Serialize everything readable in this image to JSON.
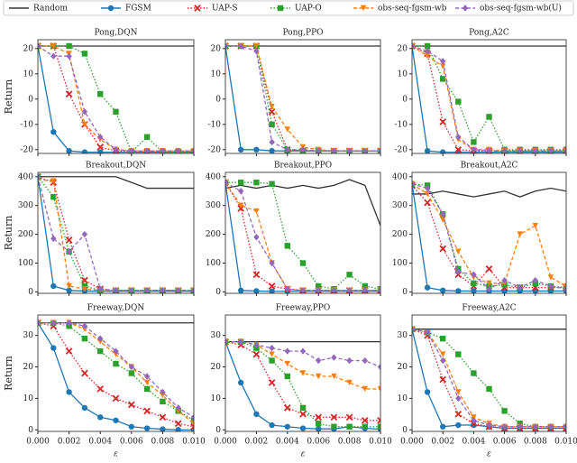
{
  "legend": [
    {
      "name": "Random",
      "color": "#333333",
      "dash": "solid"
    },
    {
      "name": "FGSM",
      "color": "#1f77b4",
      "dash": "solid",
      "marker": "circle"
    },
    {
      "name": "UAP-S",
      "color": "#d62728",
      "dash": "dotted",
      "marker": "cross"
    },
    {
      "name": "UAP-O",
      "color": "#2ca02c",
      "dash": "dotted",
      "marker": "square"
    },
    {
      "name": "obs-seq-fgsm-wb",
      "color": "#ff7f0e",
      "dash": "dashed",
      "marker": "triangle-down"
    },
    {
      "name": "obs-seq-fgsm-wb(U)",
      "color": "#9467bd",
      "dash": "dashed",
      "marker": "diamond"
    }
  ],
  "x_axis": {
    "label": "ε",
    "x": [
      0,
      0.001,
      0.002,
      0.003,
      0.004,
      0.005,
      0.006,
      0.007,
      0.008,
      0.009,
      0.01
    ],
    "xlim": [
      0,
      0.01
    ],
    "xticks": [
      {
        "value": 0,
        "label": "0.000"
      },
      {
        "value": 0.002,
        "label": "0.002"
      },
      {
        "value": 0.004,
        "label": "0.004"
      },
      {
        "value": 0.006,
        "label": "0.006"
      },
      {
        "value": 0.008,
        "label": "0.008"
      },
      {
        "value": 0.01,
        "label": "0.010"
      }
    ]
  },
  "y_axis_label": "Return",
  "chart_data": [
    {
      "type": "line",
      "title": "Pong,DQN",
      "ylim": [
        -21.5,
        23.5
      ],
      "yticks": [
        -20,
        -10,
        0,
        10,
        20
      ],
      "series": [
        {
          "values": [
            21,
            21,
            21,
            21,
            21,
            21,
            21,
            21,
            21,
            21,
            21
          ]
        },
        {
          "values": [
            21,
            -13,
            -20.5,
            -21,
            -21,
            -21,
            -21,
            -21,
            -21,
            -21,
            -21
          ]
        },
        {
          "values": [
            21,
            21,
            2,
            -10,
            -19,
            -20.5,
            -21,
            -21,
            -21,
            -21,
            -21
          ]
        },
        {
          "values": [
            21,
            21,
            21,
            18,
            2,
            -5,
            -21,
            -15,
            -21,
            -21,
            -21
          ]
        },
        {
          "values": [
            21,
            21,
            18,
            -10,
            -16,
            -20,
            -20.5,
            -20.5,
            -20.5,
            -20.5,
            -20.5
          ]
        },
        {
          "values": [
            21,
            17,
            17,
            -5,
            -15,
            -20,
            -20.5,
            -20.5,
            -20.5,
            -20.5,
            -20.5
          ]
        }
      ]
    },
    {
      "type": "line",
      "title": "Pong,PPO",
      "ylim": [
        -21.5,
        23.5
      ],
      "yticks": [
        -20,
        -10,
        0,
        10,
        20
      ],
      "series": [
        {
          "values": [
            21,
            21,
            21,
            21,
            21,
            21,
            21,
            21,
            21,
            21,
            21
          ]
        },
        {
          "values": [
            21,
            -20,
            -20,
            -20.5,
            -20.5,
            -20.5,
            -20.5,
            -20.5,
            -20.5,
            -20.5,
            -20.5
          ]
        },
        {
          "values": [
            21,
            21,
            21,
            -5,
            -20,
            -20.5,
            -20.5,
            -20.5,
            -20.5,
            -20.5,
            -20.5
          ]
        },
        {
          "values": [
            21,
            21,
            21,
            -10,
            -20,
            -20.5,
            -20.5,
            -20.5,
            -20.5,
            -20.5,
            -20.5
          ]
        },
        {
          "values": [
            21,
            21,
            21,
            -3,
            -12,
            -19,
            -20,
            -20.5,
            -20.5,
            -20.5,
            -20.5
          ]
        },
        {
          "values": [
            21,
            21,
            19,
            -17,
            -20,
            -20,
            -20.5,
            -20.5,
            -20.5,
            -20.5,
            -20.5
          ]
        }
      ]
    },
    {
      "type": "line",
      "title": "Pong,A2C",
      "ylim": [
        -21.5,
        23.5
      ],
      "yticks": [
        -20,
        -10,
        0,
        10,
        20
      ],
      "series": [
        {
          "values": [
            21,
            21,
            21,
            21,
            21,
            21,
            21,
            21,
            21,
            21,
            21
          ]
        },
        {
          "values": [
            21,
            -20.5,
            -21,
            -21,
            -21,
            -21,
            -21,
            -21,
            -21,
            -21,
            -21
          ]
        },
        {
          "values": [
            21,
            18,
            -9,
            -20,
            -20.5,
            -20.5,
            -20.5,
            -20.5,
            -20.5,
            -20.5,
            -20.5
          ]
        },
        {
          "values": [
            21,
            21,
            8,
            -1,
            -17,
            -7,
            -20,
            -20,
            -20,
            -20,
            -20
          ]
        },
        {
          "values": [
            21,
            17,
            13,
            -16,
            -20,
            -20,
            -20.5,
            -20.5,
            -20.5,
            -20.5,
            -20.5
          ]
        },
        {
          "values": [
            21,
            19,
            15,
            -15,
            -20,
            -20.5,
            -20.5,
            -20.5,
            -20.5,
            -20.5,
            -20.5
          ]
        }
      ]
    },
    {
      "type": "line",
      "title": "Breakout,DQN",
      "ylim": [
        -5,
        415
      ],
      "yticks": [
        0,
        100,
        200,
        300,
        400
      ],
      "series": [
        {
          "values": [
            400,
            400,
            400,
            400,
            400,
            400,
            380,
            360,
            360,
            360,
            360
          ]
        },
        {
          "values": [
            400,
            20,
            5,
            3,
            2,
            2,
            2,
            2,
            2,
            2,
            2
          ]
        },
        {
          "values": [
            400,
            380,
            180,
            40,
            10,
            5,
            5,
            5,
            5,
            5,
            5
          ]
        },
        {
          "values": [
            400,
            330,
            140,
            20,
            5,
            5,
            5,
            5,
            5,
            5,
            5
          ]
        },
        {
          "values": [
            390,
            385,
            20,
            10,
            5,
            5,
            5,
            5,
            5,
            5,
            5
          ]
        },
        {
          "values": [
            400,
            185,
            140,
            200,
            10,
            5,
            5,
            5,
            5,
            5,
            5
          ]
        }
      ]
    },
    {
      "type": "line",
      "title": "Breakout,PPO",
      "ylim": [
        -5,
        415
      ],
      "yticks": [
        0,
        100,
        200,
        300,
        400
      ],
      "series": [
        {
          "values": [
            360,
            370,
            360,
            370,
            360,
            370,
            360,
            370,
            390,
            370,
            230
          ]
        },
        {
          "values": [
            380,
            5,
            3,
            2,
            2,
            2,
            2,
            2,
            2,
            2,
            2
          ]
        },
        {
          "values": [
            380,
            290,
            60,
            20,
            10,
            5,
            5,
            5,
            5,
            5,
            5
          ]
        },
        {
          "values": [
            380,
            380,
            380,
            375,
            160,
            100,
            20,
            10,
            60,
            20,
            10
          ]
        },
        {
          "values": [
            380,
            300,
            280,
            100,
            10,
            5,
            5,
            5,
            5,
            5,
            5
          ]
        },
        {
          "values": [
            380,
            350,
            190,
            100,
            10,
            5,
            5,
            5,
            5,
            5,
            5
          ]
        }
      ]
    },
    {
      "type": "line",
      "title": "Breakout,A2C",
      "ylim": [
        -5,
        415
      ],
      "yticks": [
        0,
        100,
        200,
        300,
        400
      ],
      "series": [
        {
          "values": [
            340,
            340,
            350,
            340,
            330,
            340,
            350,
            330,
            350,
            360,
            350
          ]
        },
        {
          "values": [
            375,
            15,
            5,
            3,
            3,
            3,
            3,
            3,
            3,
            3,
            3
          ]
        },
        {
          "values": [
            370,
            310,
            150,
            60,
            20,
            80,
            15,
            15,
            15,
            15,
            15
          ]
        },
        {
          "values": [
            375,
            370,
            270,
            80,
            30,
            20,
            25,
            15,
            30,
            20,
            15
          ]
        },
        {
          "values": [
            375,
            340,
            250,
            140,
            50,
            30,
            30,
            200,
            230,
            50,
            20
          ]
        },
        {
          "values": [
            375,
            360,
            270,
            70,
            60,
            10,
            40,
            15,
            40,
            20,
            10
          ]
        }
      ]
    },
    {
      "type": "line",
      "title": "Freeway,DQN",
      "ylim": [
        -0.5,
        36.5
      ],
      "yticks": [
        0,
        10,
        20,
        30
      ],
      "series": [
        {
          "values": [
            34,
            34,
            34,
            34,
            34,
            34,
            34,
            34,
            34,
            34,
            34
          ]
        },
        {
          "values": [
            34,
            26,
            12,
            7,
            4,
            3,
            1,
            0.5,
            0.2,
            0,
            0
          ]
        },
        {
          "values": [
            34,
            33,
            25,
            18,
            13,
            10,
            8,
            6,
            4,
            2,
            1
          ]
        },
        {
          "values": [
            34,
            34,
            33,
            29,
            25,
            21,
            18,
            13,
            9,
            6,
            3
          ]
        },
        {
          "values": [
            34,
            34,
            34,
            32,
            28,
            24,
            20,
            15,
            11,
            6,
            2
          ]
        },
        {
          "values": [
            34,
            34,
            34,
            33,
            29,
            25,
            20,
            17,
            12,
            7,
            4
          ]
        }
      ]
    },
    {
      "type": "line",
      "title": "Freeway,PPO",
      "ylim": [
        -0.5,
        36.5
      ],
      "yticks": [
        0,
        10,
        20,
        30
      ],
      "series": [
        {
          "values": [
            28,
            28,
            28,
            28,
            28,
            28,
            28,
            28,
            28,
            28,
            28
          ]
        },
        {
          "values": [
            28,
            15,
            5,
            1.5,
            1,
            0.5,
            0.3,
            0.3,
            1,
            0.5,
            0.2
          ]
        },
        {
          "values": [
            28,
            27,
            24,
            15,
            7,
            5,
            4,
            4,
            4,
            3,
            3
          ]
        },
        {
          "values": [
            28,
            28,
            26,
            22,
            17,
            7,
            2,
            1,
            1,
            1,
            1
          ]
        },
        {
          "values": [
            28,
            28,
            27,
            24,
            21,
            18,
            17,
            17,
            15,
            13,
            13
          ]
        },
        {
          "values": [
            28,
            28,
            27,
            26,
            25,
            25,
            22,
            23,
            22,
            22,
            20
          ]
        }
      ]
    },
    {
      "type": "line",
      "title": "Freeway,A2C",
      "ylim": [
        -0.5,
        36.5
      ],
      "yticks": [
        0,
        10,
        20,
        30
      ],
      "series": [
        {
          "values": [
            32,
            32,
            32,
            32,
            32,
            32,
            32,
            32,
            32,
            32,
            32
          ]
        },
        {
          "values": [
            32,
            12,
            1,
            1.5,
            1.5,
            1,
            0.5,
            0.5,
            0.5,
            0.5,
            0.5
          ]
        },
        {
          "values": [
            32,
            30,
            16,
            5,
            2,
            1,
            0.5,
            0.5,
            0.5,
            0.5,
            0.5
          ]
        },
        {
          "values": [
            32,
            31,
            29,
            24,
            18,
            13,
            6,
            2,
            1,
            1,
            1
          ]
        },
        {
          "values": [
            32,
            31,
            24,
            12,
            4,
            2,
            1,
            1,
            1,
            1,
            1
          ]
        },
        {
          "values": [
            32,
            31,
            22,
            10,
            3,
            1.5,
            1,
            1,
            1,
            1,
            1
          ]
        }
      ]
    }
  ]
}
